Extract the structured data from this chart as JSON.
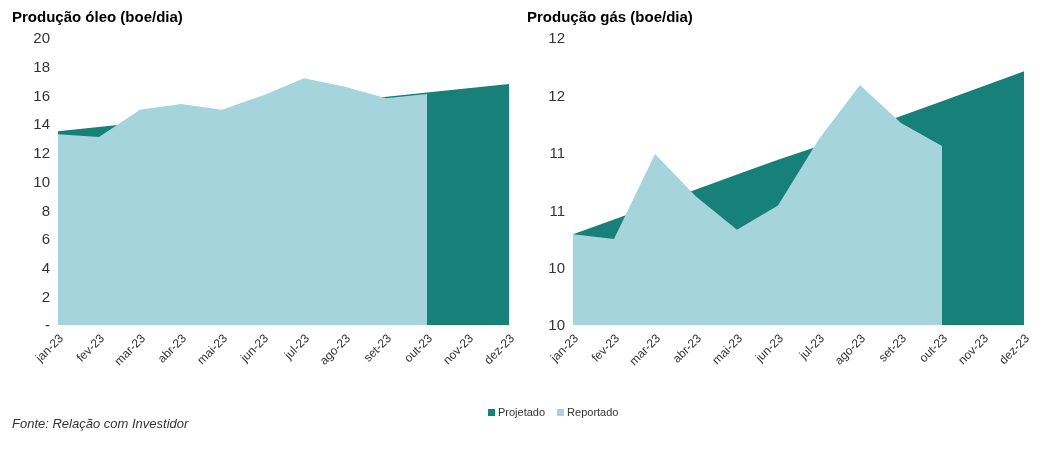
{
  "chart_data": [
    {
      "type": "area",
      "title": "Produção óleo (boe/dia)",
      "categories": [
        "jan-23",
        "fev-23",
        "mar-23",
        "abr-23",
        "mai-23",
        "jun-23",
        "jul-23",
        "ago-23",
        "set-23",
        "out-23",
        "nov-23",
        "dez-23"
      ],
      "series": [
        {
          "name": "Projetado",
          "color": "#168079",
          "values": [
            13.5,
            null,
            null,
            null,
            null,
            null,
            null,
            null,
            null,
            16.2,
            16.5,
            16.8
          ]
        },
        {
          "name": "Reportado",
          "color": "#a6d4dc",
          "values": [
            13.3,
            13.1,
            15.0,
            15.4,
            15.0,
            16.0,
            17.2,
            16.6,
            15.8,
            16.1,
            null,
            null
          ]
        }
      ],
      "ylim": [
        0,
        20
      ],
      "yticks": [
        {
          "value": 0,
          "label": "-"
        },
        2,
        4,
        6,
        8,
        10,
        12,
        14,
        16,
        18,
        20
      ],
      "grid": false,
      "legend": "bottom",
      "annotations": [
        "Fonte: Relação com Investidor"
      ]
    },
    {
      "type": "area",
      "title": "Produção gás (boe/dia)",
      "categories": [
        "jan-23",
        "fev-23",
        "mar-23",
        "abr-23",
        "mai-23",
        "jun-23",
        "jul-23",
        "ago-23",
        "set-23",
        "out-23",
        "nov-23",
        "dez-23"
      ],
      "series": [
        {
          "color": "#168079",
          "values": [
            10.29,
            10.42,
            null,
            10.68,
            10.81,
            10.94,
            11.06,
            null,
            11.32,
            11.45,
            11.58,
            11.71
          ]
        },
        {
          "color": "#a6d4dc",
          "values": [
            10.29,
            10.25,
            10.99,
            10.62,
            10.33,
            10.54,
            11.12,
            11.59,
            11.26,
            11.06,
            null,
            null
          ]
        }
      ],
      "ylim": [
        9.5,
        12
      ],
      "yticks": [
        {
          "value": 9.5,
          "label": "10"
        },
        {
          "value": 10,
          "label": "10"
        },
        {
          "value": 10.5,
          "label": "11"
        },
        {
          "value": 11,
          "label": "11"
        },
        {
          "value": 11.5,
          "label": "12"
        },
        {
          "value": 12,
          "label": "12"
        }
      ],
      "grid": false
    }
  ]
}
